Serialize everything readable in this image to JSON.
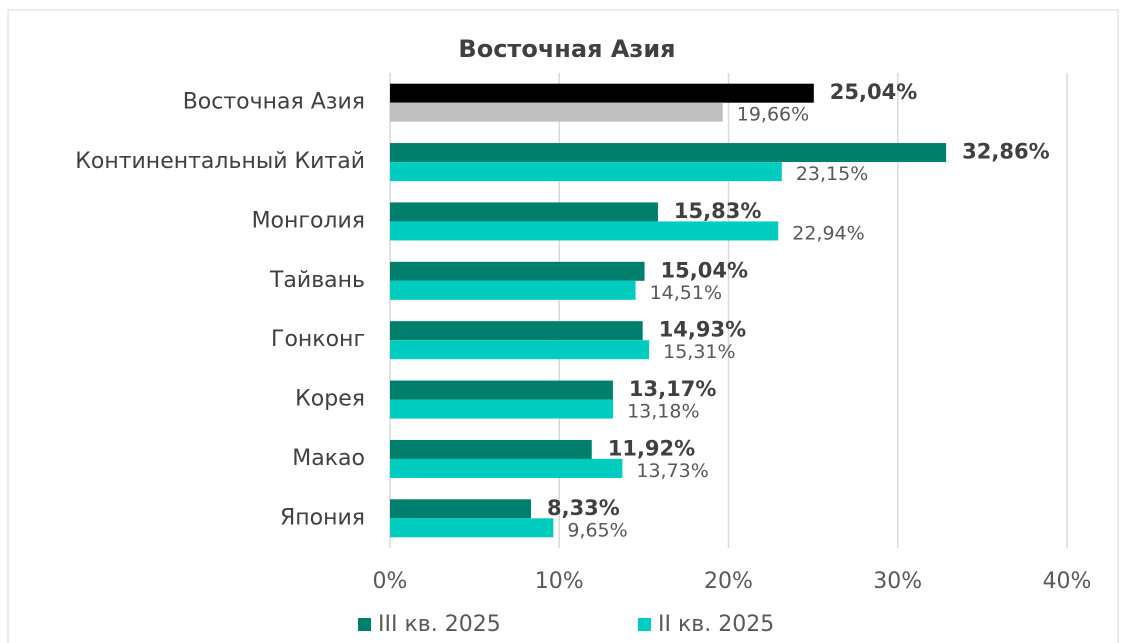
{
  "chart_data": {
    "type": "barh",
    "title": "Восточная Азия",
    "categories": [
      "Восточная Азия",
      "Континентальный Китай",
      "Монголия",
      "Тайвань",
      "Гонконг",
      "Корея",
      "Макао",
      "Япония"
    ],
    "series": [
      {
        "name": "III кв. 2025",
        "color": "#007f6d",
        "colors": [
          "#000000",
          "#007f6d",
          "#007f6d",
          "#007f6d",
          "#007f6d",
          "#007f6d",
          "#007f6d",
          "#007f6d"
        ],
        "values": [
          25.04,
          32.86,
          15.83,
          15.04,
          14.93,
          13.17,
          11.92,
          8.33
        ],
        "value_labels": [
          "25,04%",
          "32,86%",
          "15,83%",
          "15,04%",
          "14,93%",
          "13,17%",
          "11,92%",
          "8,33%"
        ]
      },
      {
        "name": "II кв. 2025",
        "color": "#00cdc0",
        "colors": [
          "#bfbfbf",
          "#00cdc0",
          "#00cdc0",
          "#00cdc0",
          "#00cdc0",
          "#00cdc0",
          "#00cdc0",
          "#00cdc0"
        ],
        "values": [
          19.66,
          23.15,
          22.94,
          14.51,
          15.31,
          13.18,
          13.73,
          9.65
        ],
        "value_labels": [
          "19,66%",
          "23,15%",
          "22,94%",
          "14,51%",
          "15,31%",
          "13,18%",
          "13,73%",
          "9,65%"
        ]
      }
    ],
    "xlim": [
      0,
      40
    ],
    "xticks": [
      {
        "value": 0,
        "label": "0%"
      },
      {
        "value": 10,
        "label": "10%"
      },
      {
        "value": 20,
        "label": "20%"
      },
      {
        "value": 30,
        "label": "30%"
      },
      {
        "value": 40,
        "label": "40%"
      }
    ],
    "grid": true,
    "legend": "bottom"
  }
}
